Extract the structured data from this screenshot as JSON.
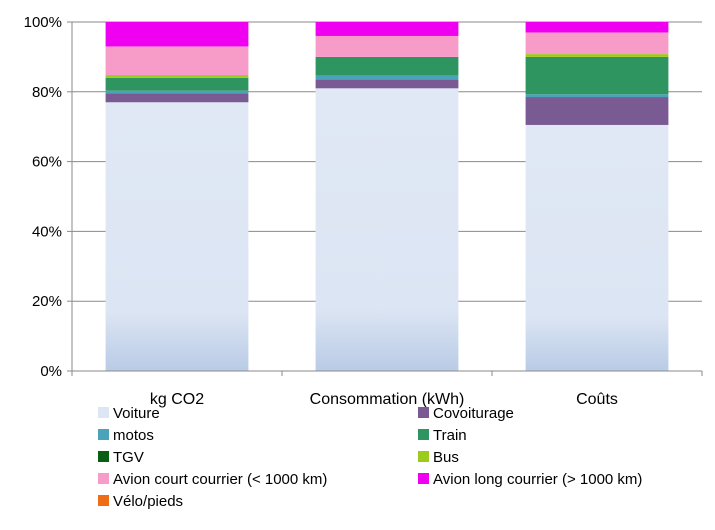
{
  "chart_data": {
    "type": "bar",
    "stacked": true,
    "percent": true,
    "categories": [
      "kg CO2",
      "Consommation  (kWh)",
      "Coûts"
    ],
    "yticks": [
      "0%",
      "20%",
      "40%",
      "60%",
      "80%",
      "100%"
    ],
    "ylim": [
      0,
      100
    ],
    "grid": true,
    "legend_position": "bottom",
    "series": [
      {
        "name": "Voiture",
        "color": "#dde6f4",
        "values": [
          77.0,
          81.0,
          70.5
        ]
      },
      {
        "name": "Covoiturage",
        "color": "#7a5a93",
        "values": [
          2.5,
          2.5,
          8.0
        ]
      },
      {
        "name": "motos",
        "color": "#4aa3b8",
        "values": [
          0.8,
          1.2,
          0.8
        ]
      },
      {
        "name": "Train",
        "color": "#2e9561",
        "values": [
          3.7,
          5.3,
          10.7
        ]
      },
      {
        "name": "TGV",
        "color": "#0a5e14",
        "values": [
          0.0,
          0.0,
          0.0
        ]
      },
      {
        "name": "Bus",
        "color": "#9ccb1b",
        "values": [
          0.8,
          0.0,
          0.8
        ]
      },
      {
        "name": "Avion court courrier  (< 1000 km)",
        "color": "#f79cc8",
        "values": [
          8.2,
          6.0,
          6.2
        ]
      },
      {
        "name": "Avion long courrier  (> 1000 km)",
        "color": "#f000f0",
        "values": [
          7.0,
          4.0,
          3.0
        ]
      },
      {
        "name": "Vélo/pieds",
        "color": "#f06d18",
        "values": [
          0.0,
          0.0,
          0.0
        ]
      }
    ]
  }
}
